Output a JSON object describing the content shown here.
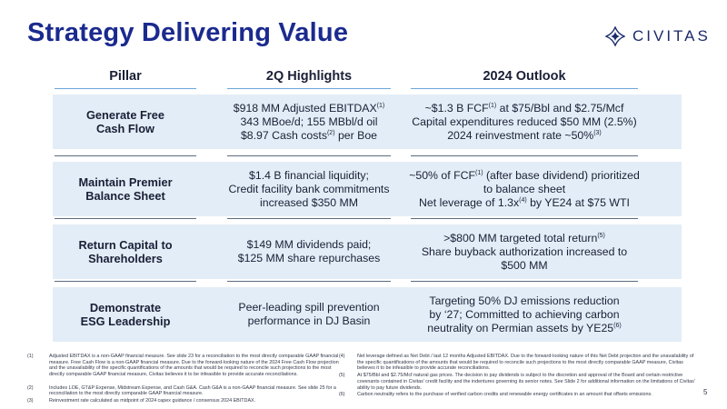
{
  "title": "Strategy Delivering Value",
  "logo": {
    "text": "CIVITAS"
  },
  "headers": {
    "pillar": "Pillar",
    "highlights": "2Q Highlights",
    "outlook": "2024 Outlook"
  },
  "rows": [
    {
      "pillar": [
        "Generate Free",
        "Cash Flow"
      ],
      "highlights": [
        {
          "text": "$918 MM Adjusted EBITDAX",
          "sup": "(1)",
          "after": ""
        },
        {
          "text": "343 MBoe/d; 155 MBbl/d oil",
          "sup": "",
          "after": ""
        },
        {
          "text": "$8.97 Cash costs",
          "sup": "(2)",
          "after": " per Boe"
        }
      ],
      "outlook": [
        {
          "text": "~$1.3 B FCF",
          "sup": "(1)",
          "after": " at $75/Bbl and $2.75/Mcf"
        },
        {
          "text": "Capital expenditures reduced $50 MM (2.5%)",
          "sup": "",
          "after": ""
        },
        {
          "text": "2024 reinvestment rate ~50%",
          "sup": "(3)",
          "after": ""
        }
      ]
    },
    {
      "pillar": [
        "Maintain Premier",
        "Balance Sheet"
      ],
      "highlights": [
        {
          "text": "$1.4 B financial liquidity;",
          "sup": "",
          "after": ""
        },
        {
          "text": "Credit facility bank commitments",
          "sup": "",
          "after": ""
        },
        {
          "text": "increased $350 MM",
          "sup": "",
          "after": ""
        }
      ],
      "outlook": [
        {
          "text": "~50% of FCF",
          "sup": "(1)",
          "after": " (after base dividend) prioritized"
        },
        {
          "text": "to balance sheet",
          "sup": "",
          "after": ""
        },
        {
          "text": "Net leverage of 1.3x",
          "sup": "(4)",
          "after": " by YE24 at $75 WTI"
        }
      ]
    },
    {
      "pillar": [
        "Return Capital to",
        "Shareholders"
      ],
      "highlights": [
        {
          "text": "$149 MM dividends paid;",
          "sup": "",
          "after": ""
        },
        {
          "text": "$125 MM share repurchases",
          "sup": "",
          "after": ""
        }
      ],
      "outlook": [
        {
          "text": ">$800 MM targeted total return",
          "sup": "(5)",
          "after": ""
        },
        {
          "text": "Share buyback authorization increased to",
          "sup": "",
          "after": ""
        },
        {
          "text": "$500 MM",
          "sup": "",
          "after": ""
        }
      ]
    },
    {
      "pillar": [
        "Demonstrate",
        "ESG Leadership"
      ],
      "highlights": [
        {
          "text": "Peer-leading spill prevention",
          "sup": "",
          "after": ""
        },
        {
          "text": "performance in DJ Basin",
          "sup": "",
          "after": ""
        }
      ],
      "outlook": [
        {
          "text": "Targeting 50% DJ emissions reduction",
          "sup": "",
          "after": ""
        },
        {
          "text": "by ‘27; Committed to achieving carbon",
          "sup": "",
          "after": ""
        },
        {
          "text": "neutrality on Permian assets by YE25",
          "sup": "(6)",
          "after": ""
        }
      ]
    }
  ],
  "footnotes": {
    "left": [
      {
        "num": "(1)",
        "text": "Adjusted EBITDAX is a non-GAAP financial measure. See slide 23 for a reconciliation to the most directly comparable GAAP financial measure. Free Cash Flow is a non-GAAP financial measure. Due to the forward-looking nature of the 2024 Free Cash Flow projection and the unavailability of the specific quantifications of the amounts that would be required to reconcile such projections to the most directly comparable GAAP financial measure, Civitas believes it to be infeasible to provide accurate reconciliations."
      },
      {
        "num": "(2)",
        "text": "Includes LOE, GT&P Expense, Midstream Expense, and Cash G&A. Cash G&A is a non-GAAP financial measure. See slide 25 for a reconciliation to the most directly comparable GAAP financial measure."
      },
      {
        "num": "(3)",
        "text": "Reinvestment rate calculated as midpoint of 2024 capex guidance / consensus 2024 EBITDAX."
      }
    ],
    "right": [
      {
        "num": "(4)",
        "text": "Net leverage defined as Net Debt / last 12 months Adjusted EBITDAX. Due to the forward-looking nature of this Net Debt projection and the unavailability of the specific quantifications of the amounts that would be required to reconcile such projections to the most directly comparable GAAP measure, Civitas believes it to be infeasible to provide accurate reconciliations."
      },
      {
        "num": "(5)",
        "text": "At $75/Bbl and $2.75/Mcf natural gas prices. The decision to pay dividends is subject to the discretion and approval of the Board and certain restrictive covenants contained in Civitas’ credit facility and the indentures governing its senior notes. See Slide 2 for additional information on the limitations of Civitas’ ability to pay future dividends."
      },
      {
        "num": "(6)",
        "text": "Carbon neutrality refers to the purchase of verified carbon credits and renewable energy certificates in an amount that offsets emissions."
      }
    ]
  },
  "page_number": "5",
  "colors": {
    "title": "#1b2a8e",
    "row_background": "#e3edf7",
    "header_rule": "#6aa7d8"
  }
}
